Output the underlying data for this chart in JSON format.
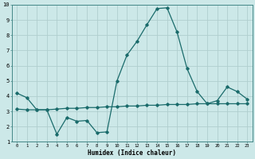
{
  "x": [
    0,
    1,
    2,
    3,
    4,
    5,
    6,
    7,
    8,
    9,
    10,
    11,
    12,
    13,
    14,
    15,
    16,
    17,
    18,
    19,
    20,
    21,
    22,
    23
  ],
  "line1": [
    4.2,
    3.9,
    3.1,
    3.1,
    1.5,
    2.6,
    2.35,
    2.4,
    1.6,
    1.65,
    5.0,
    6.7,
    7.6,
    8.7,
    9.75,
    9.8,
    8.2,
    5.8,
    4.3,
    3.5,
    3.7,
    4.6,
    4.3,
    3.8
  ],
  "line2": [
    3.15,
    3.1,
    3.1,
    3.1,
    3.15,
    3.2,
    3.2,
    3.25,
    3.25,
    3.3,
    3.3,
    3.35,
    3.35,
    3.4,
    3.4,
    3.45,
    3.45,
    3.45,
    3.5,
    3.5,
    3.5,
    3.5,
    3.5,
    3.5
  ],
  "line_color": "#1a6b6b",
  "bg_color": "#cce8e8",
  "grid_color": "#b0cece",
  "xlabel": "Humidex (Indice chaleur)",
  "ylim": [
    1,
    10
  ],
  "xlim": [
    -0.5,
    23.5
  ],
  "yticks": [
    1,
    2,
    3,
    4,
    5,
    6,
    7,
    8,
    9,
    10
  ],
  "xticks": [
    0,
    1,
    2,
    3,
    4,
    5,
    6,
    7,
    8,
    9,
    10,
    11,
    12,
    13,
    14,
    15,
    16,
    17,
    18,
    19,
    20,
    21,
    22,
    23
  ],
  "xtick_labels": [
    "0",
    "1",
    "2",
    "3",
    "4",
    "5",
    "6",
    "7",
    "8",
    "9",
    "10",
    "11",
    "12",
    "13",
    "14",
    "15",
    "16",
    "17",
    "18",
    "19",
    "20",
    "21",
    "22",
    "23"
  ],
  "marker": "D",
  "markersize": 1.8,
  "linewidth": 0.9,
  "xlabel_fontsize": 5.5,
  "xtick_fontsize": 4.0,
  "ytick_fontsize": 5.0
}
